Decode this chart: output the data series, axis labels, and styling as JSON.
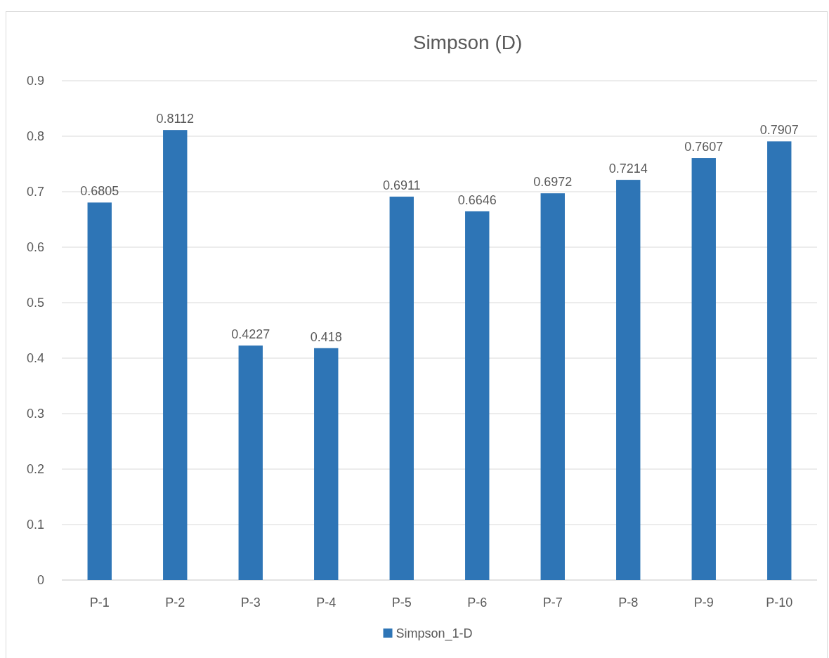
{
  "chart_data": {
    "type": "bar",
    "title": "Simpson (D)",
    "categories": [
      "P-1",
      "P-2",
      "P-3",
      "P-4",
      "P-5",
      "P-6",
      "P-7",
      "P-8",
      "P-9",
      "P-10"
    ],
    "series": [
      {
        "name": "Simpson_1-D",
        "color": "#2e75b6",
        "values": [
          0.6805,
          0.8112,
          0.4227,
          0.418,
          0.6911,
          0.6646,
          0.6972,
          0.7214,
          0.7607,
          0.7907
        ]
      }
    ],
    "ylim": [
      0,
      0.9
    ],
    "yticks": [
      0,
      0.1,
      0.2,
      0.3,
      0.4,
      0.5,
      0.6,
      0.7,
      0.8,
      0.9
    ],
    "grid": "y",
    "legend": "bottom",
    "data_labels": true
  }
}
